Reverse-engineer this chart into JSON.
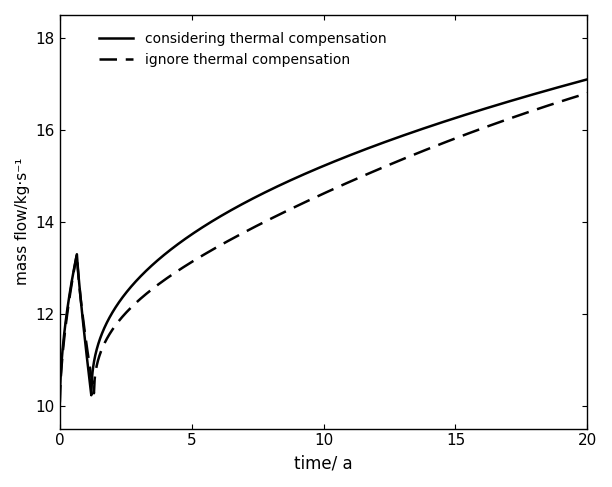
{
  "title": "",
  "xlabel": "time/ a",
  "ylabel": "mass flow/kg·s⁻¹",
  "xlim": [
    0,
    20
  ],
  "ylim": [
    9.5,
    18.5
  ],
  "yticks": [
    10,
    12,
    14,
    16,
    18
  ],
  "xticks": [
    0,
    5,
    10,
    15,
    20
  ],
  "legend_solid": "considering thermal compensation",
  "legend_dashed": "ignore thermal compensation",
  "background_color": "#ffffff",
  "line_color": "#000000",
  "solid_linewidth": 1.8,
  "dashed_linewidth": 1.8
}
